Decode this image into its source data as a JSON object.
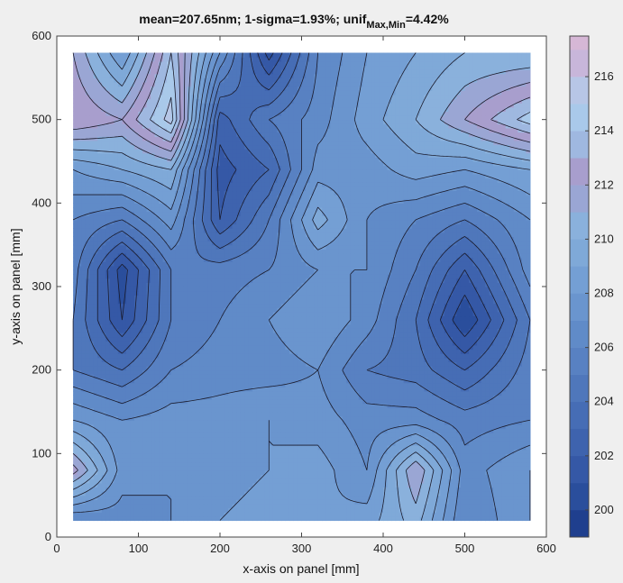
{
  "chart_data": {
    "type": "contour",
    "title": {
      "main": "mean=207.65nm; 1-sigma=1.93%; unif",
      "subscript": "Max,Min",
      "suffix": "=4.42%"
    },
    "xlabel": "x-axis on panel [mm]",
    "ylabel": "y-axis on panel [mm]",
    "xlim": [
      0,
      600
    ],
    "ylim": [
      0,
      600
    ],
    "xticks": [
      0,
      100,
      200,
      300,
      400,
      500,
      600
    ],
    "yticks": [
      0,
      100,
      200,
      300,
      400,
      500,
      600
    ],
    "data_extent": {
      "x": [
        20,
        580
      ],
      "y": [
        20,
        580
      ]
    },
    "grid": false,
    "colorbar": {
      "range": [
        199,
        217.5
      ],
      "ticks": [
        200,
        202,
        204,
        206,
        208,
        210,
        212,
        214,
        216
      ],
      "levels": [
        199,
        200,
        201,
        202,
        203,
        204,
        205,
        206,
        207,
        208,
        209,
        210,
        211,
        212,
        213,
        214,
        215,
        216,
        217,
        217.5
      ],
      "colors": [
        "#1f3f8e",
        "#2a4e9c",
        "#3558a6",
        "#3e63ae",
        "#466db5",
        "#4f77bb",
        "#5881c2",
        "#608bc8",
        "#6a95ce",
        "#749fd4",
        "#7fa9d8",
        "#8ab1dc",
        "#9aa6d4",
        "#a89ecd",
        "#9fb8e0",
        "#a9c9ea",
        "#b7c6e6",
        "#c8b6da",
        "#d6b7d6"
      ]
    },
    "grid_x": [
      20,
      80,
      140,
      200,
      260,
      320,
      380,
      440,
      500,
      580
    ],
    "grid_y": [
      20,
      80,
      140,
      200,
      260,
      320,
      380,
      440,
      500,
      580
    ],
    "z": [
      [
        206.0,
        206.5,
        207.0,
        208.0,
        208.5,
        208.0,
        208.5,
        210.5,
        206.0,
        208.0
      ],
      [
        212.5,
        207.5,
        207.0,
        207.5,
        208.0,
        208.5,
        207.0,
        212.0,
        206.5,
        208.0
      ],
      [
        208.0,
        207.0,
        207.5,
        207.5,
        208.0,
        207.5,
        206.5,
        206.5,
        205.5,
        206.0
      ],
      [
        205.0,
        204.0,
        206.0,
        206.5,
        206.5,
        207.0,
        205.0,
        204.5,
        203.0,
        205.5
      ],
      [
        205.0,
        201.0,
        205.0,
        206.0,
        207.0,
        208.0,
        206.5,
        204.0,
        200.0,
        205.0
      ],
      [
        205.5,
        200.5,
        205.0,
        205.5,
        206.0,
        207.0,
        207.0,
        205.0,
        202.0,
        206.5
      ],
      [
        206.0,
        205.0,
        207.5,
        202.0,
        205.0,
        209.5,
        207.0,
        206.0,
        205.0,
        207.0
      ],
      [
        208.0,
        209.0,
        210.0,
        201.5,
        203.0,
        207.5,
        207.5,
        208.5,
        208.0,
        209.0
      ],
      [
        213.0,
        212.0,
        215.5,
        202.5,
        205.0,
        206.5,
        208.5,
        210.0,
        212.0,
        214.5
      ],
      [
        212.0,
        208.0,
        214.0,
        207.0,
        200.5,
        206.0,
        208.0,
        209.0,
        210.0,
        210.0
      ]
    ]
  }
}
